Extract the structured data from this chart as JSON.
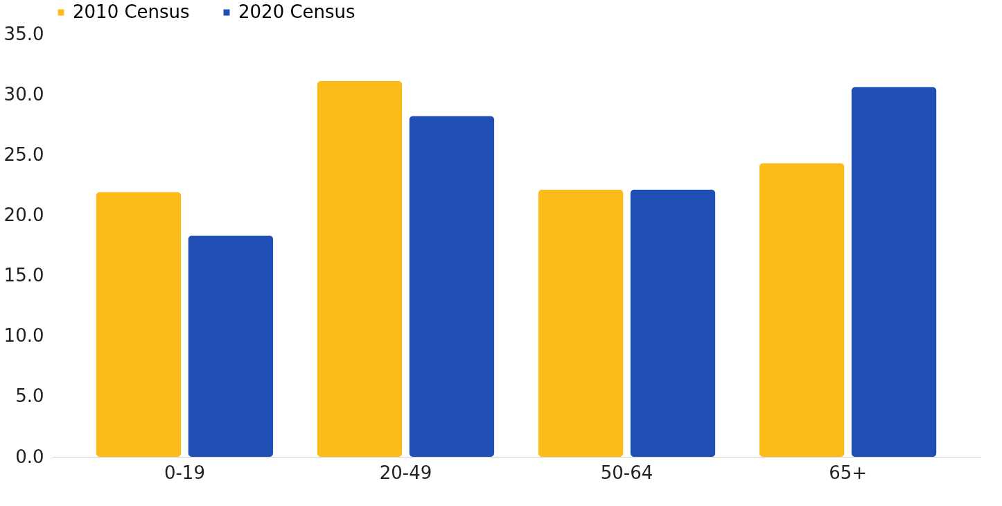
{
  "chart_data": {
    "type": "bar",
    "categories": [
      "0-19",
      "20-49",
      "50-64",
      "65+"
    ],
    "series": [
      {
        "name": "2010 Census",
        "color": "#fdbb1a",
        "values": [
          21.9,
          31.1,
          22.1,
          24.3
        ]
      },
      {
        "name": "2020 Census",
        "color": "#1f4fb4",
        "values": [
          18.3,
          28.2,
          22.1,
          30.6
        ]
      }
    ],
    "ylim": [
      0,
      35
    ],
    "yticks": [
      {
        "value": 0,
        "label": "0.0"
      },
      {
        "value": 5,
        "label": "5.0"
      },
      {
        "value": 10,
        "label": "10.0"
      },
      {
        "value": 15,
        "label": "15.0"
      },
      {
        "value": 20,
        "label": "20.0"
      },
      {
        "value": 25,
        "label": "25.0"
      },
      {
        "value": 30,
        "label": "30.0"
      },
      {
        "value": 35,
        "label": "35.0"
      }
    ],
    "legend": "top",
    "grid": false
  }
}
